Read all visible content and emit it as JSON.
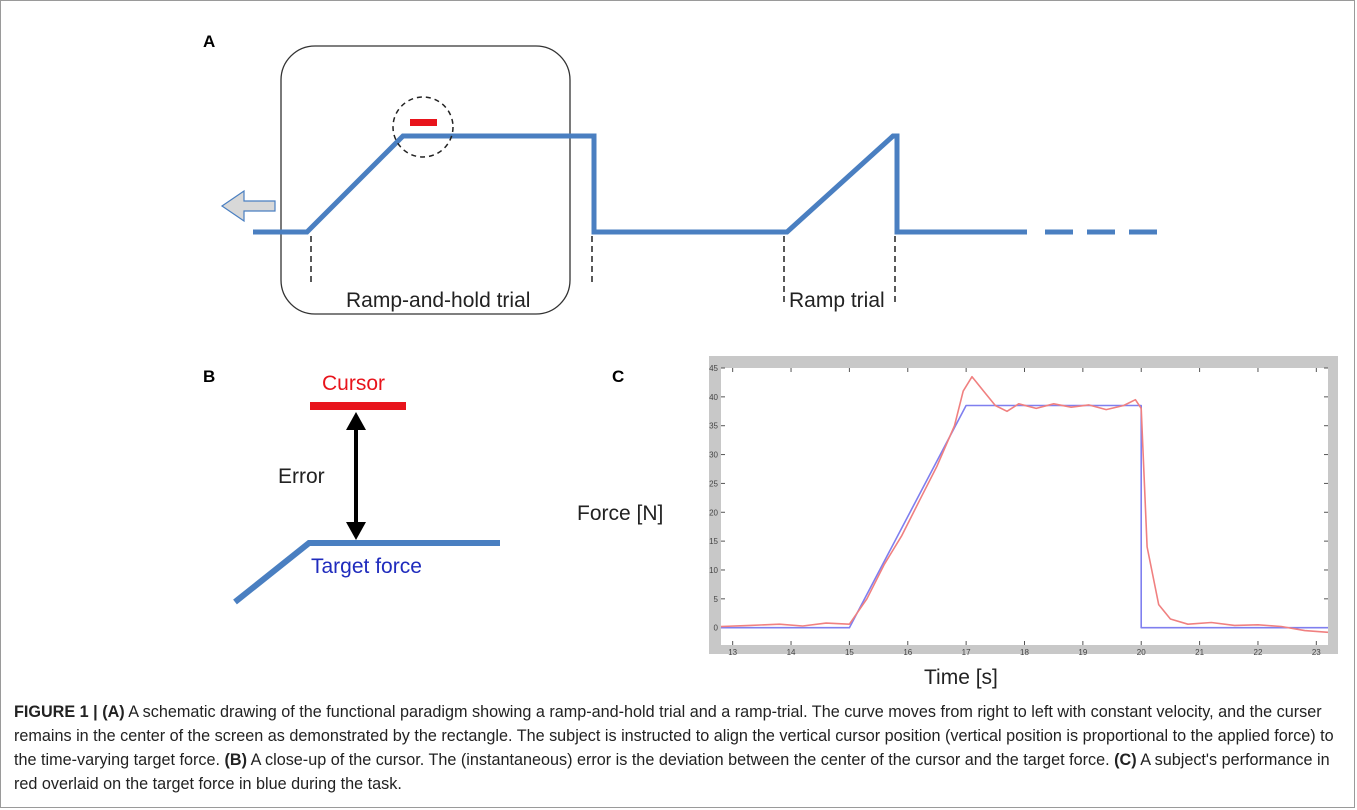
{
  "panel_letters": {
    "a": "A",
    "b": "B",
    "c": "C"
  },
  "panel_a": {
    "label_ramp_and_hold": "Ramp-and-hold trial",
    "label_ramp": "Ramp trial"
  },
  "panel_b": {
    "cursor_label": "Cursor",
    "error_label": "Error",
    "target_label": "Target force"
  },
  "colors": {
    "target_blue": "#4a7fc1",
    "cursor_red": "#e8141c",
    "text_red": "#e8141c",
    "text_blue": "#1f2bbd",
    "trace_red": "#f08080",
    "trace_blue": "#7f7fef",
    "arrow_fill": "#d8d8d8",
    "arrow_stroke": "#4a7fc1"
  },
  "chart_data": {
    "type": "line",
    "title": "",
    "xlabel": "Time [s]",
    "ylabel": "Force [N]",
    "xlim": [
      12.8,
      23.2
    ],
    "ylim": [
      -3,
      45
    ],
    "xticks": [
      13,
      14,
      15,
      16,
      17,
      18,
      19,
      20,
      21,
      22,
      23
    ],
    "yticks": [
      0,
      5,
      10,
      15,
      20,
      25,
      30,
      35,
      40,
      45
    ],
    "grid": false,
    "series": [
      {
        "color": "#7f7fef",
        "x": [
          12.8,
          15,
          17,
          20,
          20,
          23.2
        ],
        "y": [
          0,
          0,
          38.5,
          38.5,
          0,
          0
        ]
      },
      {
        "color": "#f08080",
        "x": [
          12.8,
          13.3,
          13.8,
          14.2,
          14.6,
          15.0,
          15.3,
          15.6,
          15.9,
          16.2,
          16.5,
          16.8,
          16.95,
          17.1,
          17.3,
          17.5,
          17.7,
          17.9,
          18.2,
          18.5,
          18.8,
          19.1,
          19.4,
          19.7,
          19.9,
          20.0,
          20.1,
          20.3,
          20.5,
          20.8,
          21.2,
          21.6,
          22.0,
          22.4,
          22.8,
          23.2
        ],
        "y": [
          0.2,
          0.4,
          0.6,
          0.3,
          0.8,
          0.6,
          5,
          11,
          16,
          22,
          28,
          35,
          41,
          43.5,
          41,
          38.5,
          37.5,
          38.8,
          38,
          38.8,
          38.2,
          38.6,
          37.8,
          38.5,
          39.5,
          38,
          14,
          4,
          1.5,
          0.6,
          0.9,
          0.4,
          0.5,
          0.2,
          -0.5,
          -0.8
        ]
      }
    ]
  },
  "caption": {
    "figure_label": "FIGURE 1 |",
    "a_label": "(A)",
    "a_text": " A schematic drawing of the functional paradigm showing a ramp-and-hold trial and a ramp-trial. The curve moves from right to left with constant velocity, and the curser remains in the center of the screen as demonstrated by the rectangle. The subject is instructed to align the vertical cursor position (vertical position is proportional to the applied force) to the time-varying target force. ",
    "b_label": "(B)",
    "b_text": " A close-up of the cursor. The (instantaneous) error is the deviation between the center of the cursor and the target force. ",
    "c_label": "(C)",
    "c_text": " A subject's performance in red overlaid on the target force in blue during the task."
  }
}
